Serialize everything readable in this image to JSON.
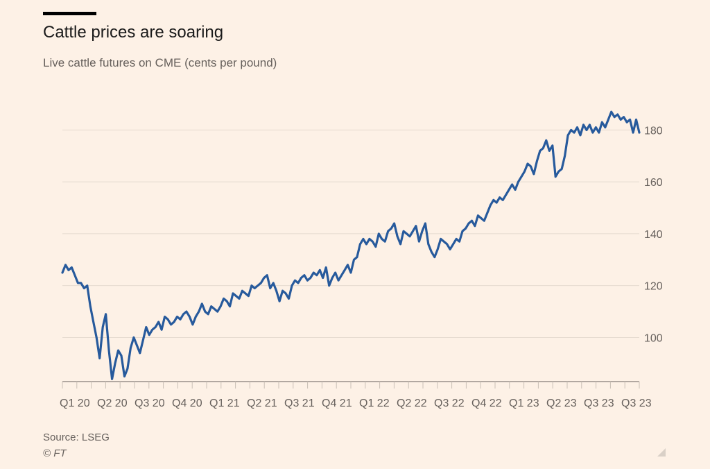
{
  "header": {
    "title": "Cattle prices are soaring",
    "subtitle": "Live cattle futures on CME (cents per pound)"
  },
  "footer": {
    "source": "Source: LSEG",
    "credit": "© FT"
  },
  "colors": {
    "line": "#275a9c",
    "grid": "#e6dbd0",
    "axis": "#66605c",
    "background": "#fdf1e6"
  },
  "chart_data": {
    "type": "line",
    "title": "Cattle prices are soaring",
    "subtitle": "Live cattle futures on CME (cents per pound)",
    "xlabel": "",
    "ylabel": "",
    "x_axis_ticks": [
      "Q1 20",
      "Q2 20",
      "Q3 20",
      "Q4 20",
      "Q1 21",
      "Q2 21",
      "Q3 21",
      "Q4 21",
      "Q1 22",
      "Q2 22",
      "Q3 22",
      "Q4 22",
      "Q1 23",
      "Q2 23",
      "Q3 23",
      "Q3 23"
    ],
    "y_axis_ticks": [
      100,
      120,
      140,
      160,
      180
    ],
    "ylim": [
      83,
      190
    ],
    "y_axis_position": "right",
    "grid": "horizontal",
    "series": [
      {
        "values": [
          125,
          128,
          126,
          127,
          124,
          121,
          121,
          119,
          120,
          112,
          106,
          100,
          92,
          104,
          109,
          95,
          84,
          90,
          95,
          93,
          85,
          88,
          96,
          100,
          97,
          94,
          99,
          104,
          101,
          103,
          104,
          106,
          103,
          108,
          107,
          105,
          106,
          108,
          107,
          109,
          110,
          108,
          105,
          108,
          110,
          113,
          110,
          109,
          112,
          111,
          110,
          112,
          115,
          114,
          112,
          117,
          116,
          115,
          118,
          117,
          116,
          120,
          119,
          120,
          121,
          123,
          124,
          119,
          121,
          118,
          114,
          118,
          117,
          115,
          120,
          122,
          121,
          123,
          124,
          122,
          123,
          125,
          124,
          126,
          123,
          127,
          120,
          123,
          125,
          122,
          124,
          126,
          128,
          125,
          130,
          131,
          136,
          138,
          136,
          138,
          137,
          135,
          140,
          138,
          137,
          141,
          142,
          144,
          139,
          136,
          141,
          140,
          139,
          141,
          143,
          137,
          141,
          144,
          136,
          133,
          131,
          134,
          138,
          137,
          136,
          134,
          136,
          138,
          137,
          141,
          142,
          144,
          145,
          143,
          147,
          146,
          145,
          148,
          151,
          153,
          152,
          154,
          153,
          155,
          157,
          159,
          157,
          160,
          162,
          164,
          167,
          166,
          163,
          168,
          172,
          173,
          176,
          172,
          174,
          162,
          164,
          165,
          170,
          178,
          180,
          179,
          181,
          178,
          182,
          180,
          182,
          179,
          181,
          179,
          183,
          181,
          184,
          187,
          185,
          186,
          184,
          185,
          183,
          184,
          179,
          184,
          179
        ]
      }
    ]
  }
}
